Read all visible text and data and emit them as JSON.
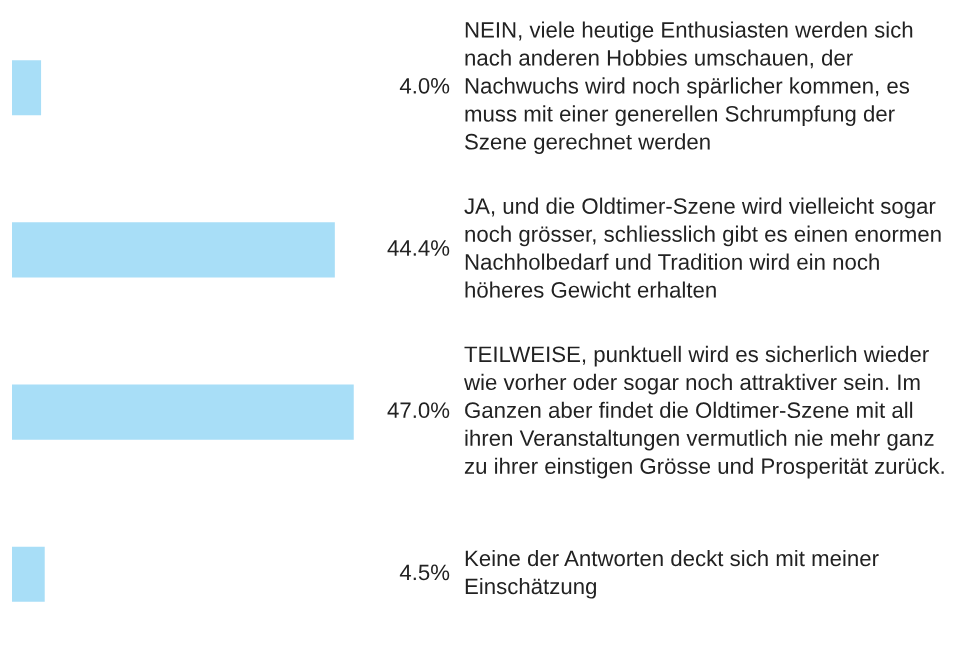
{
  "chart_data": {
    "type": "bar",
    "orientation": "horizontal",
    "categories": [
      "NEIN, viele heutige Enthusiasten werden sich nach anderen Hobbies umschauen, der Nachwuchs wird noch spärlicher kommen, es muss mit einer generellen Schrumpfung der Szene gerechnet werden",
      "JA, und die Oldtimer-Szene wird vielleicht sogar noch grösser, schliesslich gibt es einen enormen Nachholbedarf und Tradition wird ein noch höheres Gewicht erhalten",
      "TEILWEISE, punktuell wird es sicherlich wieder wie vorher oder sogar noch attraktiver sein. Im Ganzen aber findet die Oldtimer-Szene mit all ihren Veranstaltungen vermutlich nie mehr ganz zu ihrer einstigen Grösse und Prosperität zurück.",
      "Keine der Antworten deckt sich mit meiner Einschätzung"
    ],
    "values": [
      4.0,
      44.4,
      47.0,
      4.5
    ],
    "value_labels": [
      "4.0%",
      "44.4%",
      "47.0%",
      "4.5%"
    ],
    "color": "#a8def7"
  }
}
